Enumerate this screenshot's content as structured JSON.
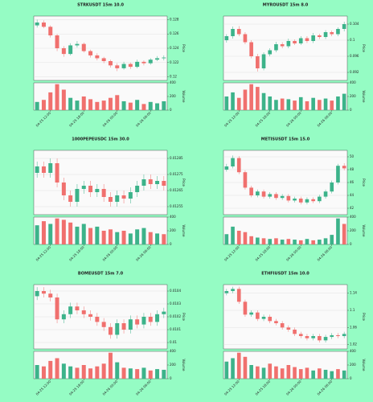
{
  "chart_data": [
    {
      "type": "candlestick",
      "title": "STRKUSDT 15m 10.0",
      "ylabel": "Price",
      "vlabel": "Volume",
      "up_color": "#3cb38a",
      "down_color": "#f0706e",
      "categories": [
        null,
        null,
        "04-25 12:00",
        null,
        null,
        null,
        null,
        "04-25 18:00",
        null,
        null,
        null,
        null,
        "04-26 00:00",
        null,
        null,
        null,
        null,
        "04-26 06:00",
        null,
        null
      ],
      "open": [
        0.1272,
        0.1276,
        0.127,
        0.1258,
        0.124,
        0.1232,
        0.1244,
        0.1246,
        0.1236,
        0.123,
        0.1226,
        0.1222,
        0.1216,
        0.1212,
        0.1218,
        0.1214,
        0.1221,
        0.1219,
        0.1224,
        0.1226
      ],
      "high": [
        0.128,
        0.1279,
        0.1272,
        0.126,
        0.1243,
        0.1247,
        0.125,
        0.1248,
        0.1238,
        0.1233,
        0.1228,
        0.1224,
        0.1219,
        0.1221,
        0.122,
        0.1224,
        0.1223,
        0.1226,
        0.1229,
        0.123
      ],
      "low": [
        0.1269,
        0.1268,
        0.1255,
        0.1236,
        0.1228,
        0.123,
        0.1241,
        0.1234,
        0.1227,
        0.1223,
        0.1219,
        0.1213,
        0.1208,
        0.121,
        0.1211,
        0.1212,
        0.1216,
        0.1217,
        0.1222,
        0.1223
      ],
      "close": [
        0.1276,
        0.127,
        0.1258,
        0.124,
        0.1232,
        0.1244,
        0.1246,
        0.1236,
        0.123,
        0.1226,
        0.1222,
        0.1216,
        0.1212,
        0.1218,
        0.1214,
        0.1221,
        0.1219,
        0.1224,
        0.1226,
        0.1227
      ],
      "volume": [
        120,
        150,
        260,
        380,
        300,
        180,
        140,
        200,
        160,
        120,
        140,
        180,
        220,
        130,
        110,
        150,
        90,
        120,
        100,
        130
      ],
      "ylim": [
        0.1195,
        0.1285
      ],
      "yticks": [
        0.12,
        0.122,
        0.124,
        0.126,
        0.128
      ],
      "vlim": [
        0,
        400
      ],
      "vticks": [
        0,
        200,
        400
      ]
    },
    {
      "type": "candlestick",
      "title": "MYROUSDT 15m 8.0",
      "ylabel": "Price",
      "vlabel": "Volume",
      "up_color": "#3cb38a",
      "down_color": "#f0706e",
      "categories": [
        null,
        null,
        "04-25 12:00",
        null,
        null,
        null,
        null,
        "04-25 18:00",
        null,
        null,
        null,
        null,
        "04-26 00:00",
        null,
        null,
        null,
        null,
        "04-26 06:00",
        null,
        null
      ],
      "open": [
        0.1,
        0.101,
        0.1028,
        0.1015,
        0.0995,
        0.096,
        0.093,
        0.0965,
        0.0975,
        0.099,
        0.0985,
        0.0998,
        0.0992,
        0.1005,
        0.0998,
        0.1012,
        0.1008,
        0.102,
        0.1015,
        0.1028
      ],
      "high": [
        0.1015,
        0.1034,
        0.1035,
        0.102,
        0.1,
        0.0966,
        0.097,
        0.098,
        0.0996,
        0.0995,
        0.1004,
        0.1002,
        0.101,
        0.101,
        0.1018,
        0.1016,
        0.1025,
        0.1024,
        0.1032,
        0.1046
      ],
      "low": [
        0.0994,
        0.1004,
        0.101,
        0.099,
        0.0955,
        0.0922,
        0.0925,
        0.096,
        0.097,
        0.098,
        0.098,
        0.0988,
        0.0988,
        0.0993,
        0.0993,
        0.1003,
        0.1003,
        0.101,
        0.101,
        0.1022
      ],
      "close": [
        0.101,
        0.1028,
        0.1015,
        0.0995,
        0.096,
        0.093,
        0.0965,
        0.0975,
        0.099,
        0.0985,
        0.0998,
        0.0992,
        0.1005,
        0.0998,
        0.1012,
        0.1008,
        0.102,
        0.1015,
        0.1028,
        0.104
      ],
      "volume": [
        200,
        260,
        180,
        300,
        380,
        340,
        250,
        200,
        150,
        170,
        160,
        140,
        190,
        130,
        180,
        150,
        170,
        140,
        200,
        240
      ],
      "ylim": [
        0.09,
        0.106
      ],
      "yticks": [
        0.092,
        0.096,
        0.1,
        0.104
      ],
      "vlim": [
        0,
        400
      ],
      "vticks": [
        0,
        200,
        400
      ]
    },
    {
      "type": "candlestick",
      "title": "1000PEPEUSDC 15m 30.0",
      "ylabel": "Price",
      "vlabel": "Volume",
      "up_color": "#3cb38a",
      "down_color": "#f0706e",
      "categories": [
        null,
        null,
        "04-25 12:00",
        null,
        null,
        null,
        null,
        "04-25 18:00",
        null,
        null,
        null,
        null,
        "04-26 00:00",
        null,
        null,
        null,
        null,
        "04-26 06:00",
        null,
        null
      ],
      "open": [
        0.01276,
        0.0128,
        0.01276,
        0.01282,
        0.0127,
        0.01262,
        0.01258,
        0.01266,
        0.01268,
        0.01264,
        0.01266,
        0.01261,
        0.01258,
        0.01262,
        0.0126,
        0.01264,
        0.01268,
        0.01272,
        0.01269,
        0.01271
      ],
      "high": [
        0.01283,
        0.01283,
        0.01285,
        0.01285,
        0.01273,
        0.01265,
        0.01269,
        0.01271,
        0.01271,
        0.01269,
        0.01269,
        0.01264,
        0.01265,
        0.01265,
        0.01267,
        0.01271,
        0.01275,
        0.01275,
        0.01274,
        0.01274
      ],
      "low": [
        0.01273,
        0.01273,
        0.01273,
        0.01267,
        0.01259,
        0.01255,
        0.01255,
        0.01263,
        0.01261,
        0.01261,
        0.01258,
        0.01255,
        0.01255,
        0.01257,
        0.01257,
        0.01261,
        0.01265,
        0.01266,
        0.01266,
        0.01265
      ],
      "close": [
        0.0128,
        0.01276,
        0.01282,
        0.0127,
        0.01262,
        0.01258,
        0.01266,
        0.01268,
        0.01264,
        0.01266,
        0.01261,
        0.01258,
        0.01262,
        0.0126,
        0.01264,
        0.01268,
        0.01272,
        0.01269,
        0.01271,
        0.01268
      ],
      "volume": [
        280,
        340,
        300,
        380,
        360,
        320,
        260,
        300,
        240,
        260,
        200,
        220,
        180,
        200,
        160,
        220,
        240,
        180,
        160,
        150
      ],
      "ylim": [
        0.0125,
        0.0129
      ],
      "yticks": [
        0.01255,
        0.01265,
        0.01275,
        0.01285
      ],
      "vlim": [
        0,
        400
      ],
      "vticks": [
        0,
        200,
        400
      ]
    },
    {
      "type": "candlestick",
      "title": "METISUSDT 15m 15.0",
      "ylabel": "Price",
      "vlabel": "Volume",
      "up_color": "#3cb38a",
      "down_color": "#f0706e",
      "categories": [
        null,
        null,
        "04-25 12:00",
        null,
        null,
        null,
        null,
        "04-25 18:00",
        null,
        null,
        null,
        null,
        "04-26 00:00",
        null,
        null,
        null,
        null,
        "04-26 06:00",
        null,
        null
      ],
      "open": [
        48.0,
        48.5,
        49.8,
        47.6,
        45.2,
        44.0,
        44.6,
        43.8,
        44.2,
        43.6,
        43.9,
        43.2,
        43.5,
        42.9,
        43.4,
        43.1,
        43.8,
        44.6,
        46.0,
        48.6
      ],
      "high": [
        48.9,
        50.2,
        50.1,
        47.9,
        45.5,
        44.9,
        44.9,
        44.5,
        44.5,
        44.2,
        44.2,
        43.8,
        43.8,
        43.7,
        43.7,
        44.1,
        44.9,
        46.3,
        48.9,
        49.0
      ],
      "low": [
        47.7,
        48.2,
        47.3,
        44.9,
        43.7,
        43.7,
        43.5,
        43.5,
        43.3,
        43.3,
        42.9,
        42.9,
        42.6,
        42.6,
        42.8,
        42.8,
        43.5,
        44.3,
        45.7,
        47.9
      ],
      "close": [
        48.5,
        49.8,
        47.6,
        45.2,
        44.0,
        44.6,
        43.8,
        44.2,
        43.6,
        43.9,
        43.2,
        43.5,
        42.9,
        43.4,
        43.1,
        43.8,
        44.6,
        46.0,
        48.6,
        48.2
      ],
      "volume": [
        150,
        260,
        200,
        180,
        120,
        100,
        90,
        80,
        90,
        70,
        80,
        70,
        60,
        80,
        60,
        70,
        90,
        140,
        380,
        300
      ],
      "ylim": [
        41,
        51
      ],
      "yticks": [
        42,
        44,
        46,
        48,
        50
      ],
      "vlim": [
        0,
        400
      ],
      "vticks": [
        0,
        200,
        400
      ]
    },
    {
      "type": "candlestick",
      "title": "BOMEUSDT 15m 7.0",
      "ylabel": "Price",
      "vlabel": "Volume",
      "up_color": "#3cb38a",
      "down_color": "#f0706e",
      "categories": [
        null,
        null,
        "04-25 12:00",
        null,
        null,
        null,
        null,
        "04-25 18:00",
        null,
        null,
        null,
        null,
        "04-26 00:00",
        null,
        null,
        null,
        null,
        "04-26 06:00",
        null,
        null
      ],
      "open": [
        0.01036,
        0.0104,
        0.01038,
        0.01035,
        0.01018,
        0.01022,
        0.01028,
        0.01025,
        0.01022,
        0.0102,
        0.01016,
        0.01012,
        0.01006,
        0.01015,
        0.0101,
        0.01018,
        0.01014,
        0.0102,
        0.01016,
        0.01022
      ],
      "high": [
        0.01043,
        0.01043,
        0.01041,
        0.01038,
        0.01025,
        0.01031,
        0.01031,
        0.01028,
        0.01025,
        0.01023,
        0.01019,
        0.01015,
        0.01018,
        0.01018,
        0.01021,
        0.01021,
        0.01023,
        0.01023,
        0.01025,
        0.01027
      ],
      "low": [
        0.01033,
        0.01035,
        0.01032,
        0.01015,
        0.01015,
        0.01019,
        0.01022,
        0.01019,
        0.01017,
        0.01013,
        0.01009,
        0.01003,
        0.01003,
        0.01007,
        0.01007,
        0.01011,
        0.01011,
        0.01013,
        0.01013,
        0.01019
      ],
      "close": [
        0.0104,
        0.01038,
        0.01035,
        0.01018,
        0.01022,
        0.01028,
        0.01025,
        0.01022,
        0.0102,
        0.01016,
        0.01012,
        0.01006,
        0.01015,
        0.0101,
        0.01018,
        0.01014,
        0.0102,
        0.01016,
        0.01022,
        0.01024
      ],
      "volume": [
        200,
        180,
        260,
        300,
        220,
        180,
        160,
        200,
        150,
        180,
        220,
        380,
        240,
        160,
        150,
        140,
        160,
        120,
        140,
        130
      ],
      "ylim": [
        0.00995,
        0.01045
      ],
      "yticks": [
        0.01,
        0.0101,
        0.0102,
        0.0103,
        0.0104
      ],
      "vlim": [
        0,
        400
      ],
      "vticks": [
        0,
        200,
        400
      ]
    },
    {
      "type": "candlestick",
      "title": "ETHFIUSDT 15m 10.0",
      "ylabel": "Price",
      "vlabel": "Volume",
      "up_color": "#3cb38a",
      "down_color": "#f0706e",
      "categories": [
        null,
        null,
        "04-25 12:00",
        null,
        null,
        null,
        null,
        "04-25 18:00",
        null,
        null,
        null,
        null,
        "04-26 00:00",
        null,
        null,
        null,
        null,
        "04-26 06:00",
        null,
        null
      ],
      "open": [
        1.14,
        1.145,
        1.15,
        1.12,
        1.09,
        1.095,
        1.08,
        1.085,
        1.075,
        1.07,
        1.06,
        1.055,
        1.045,
        1.04,
        1.035,
        1.04,
        1.03,
        1.038,
        1.042,
        1.04
      ],
      "high": [
        1.15,
        1.155,
        1.155,
        1.125,
        1.1,
        1.1,
        1.09,
        1.09,
        1.08,
        1.075,
        1.065,
        1.06,
        1.05,
        1.045,
        1.045,
        1.045,
        1.043,
        1.047,
        1.047,
        1.05
      ],
      "low": [
        1.135,
        1.14,
        1.115,
        1.085,
        1.085,
        1.075,
        1.075,
        1.07,
        1.065,
        1.055,
        1.05,
        1.04,
        1.035,
        1.03,
        1.03,
        1.025,
        1.025,
        1.033,
        1.035,
        1.035
      ],
      "close": [
        1.145,
        1.15,
        1.12,
        1.09,
        1.095,
        1.08,
        1.085,
        1.075,
        1.07,
        1.06,
        1.055,
        1.045,
        1.04,
        1.035,
        1.04,
        1.03,
        1.038,
        1.042,
        1.04,
        1.045
      ],
      "volume": [
        250,
        300,
        380,
        320,
        200,
        180,
        160,
        220,
        180,
        150,
        200,
        170,
        140,
        160,
        120,
        150,
        130,
        110,
        140,
        120
      ],
      "ylim": [
        1.01,
        1.16
      ],
      "yticks": [
        1.02,
        1.06,
        1.1,
        1.14
      ],
      "vlim": [
        0,
        400
      ],
      "vticks": [
        0,
        200,
        400
      ]
    }
  ]
}
